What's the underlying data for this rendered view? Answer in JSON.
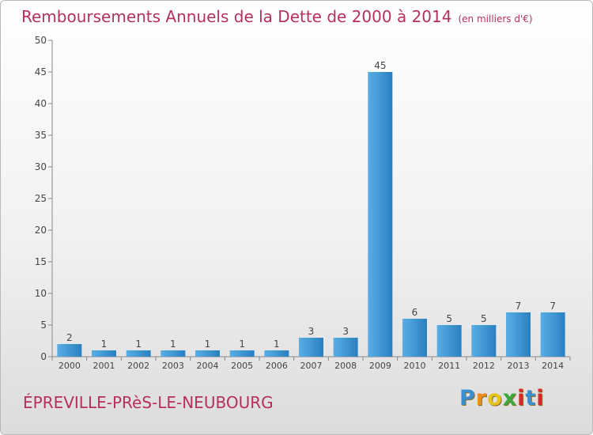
{
  "header": {
    "title": "Remboursements Annuels de la Dette de 2000 à 2014",
    "unit": "(en milliers d'€)"
  },
  "footer": {
    "commune": "ÉPREVILLE-PRèS-LE-NEUBOURG",
    "logo": "Proxiti"
  },
  "colors": {
    "bar_light": "#5aaee6",
    "bar_dark": "#2a7fc0",
    "title": "#b5305b",
    "logo": [
      "#3a8fd0",
      "#f08a1c",
      "#e8c51a",
      "#3aa83a",
      "#d62a2a",
      "#3a8fd0",
      "#d62a2a"
    ]
  },
  "chart_data": {
    "type": "bar",
    "categories": [
      "2000",
      "2001",
      "2002",
      "2003",
      "2004",
      "2005",
      "2006",
      "2007",
      "2008",
      "2009",
      "2010",
      "2011",
      "2012",
      "2013",
      "2014"
    ],
    "values": [
      2,
      1,
      1,
      1,
      1,
      1,
      1,
      3,
      3,
      45,
      6,
      5,
      5,
      7,
      7
    ],
    "ylim": [
      0,
      50
    ],
    "yticks": [
      0,
      5,
      10,
      15,
      20,
      25,
      30,
      35,
      40,
      45,
      50
    ],
    "grid": false,
    "legend": "none"
  }
}
